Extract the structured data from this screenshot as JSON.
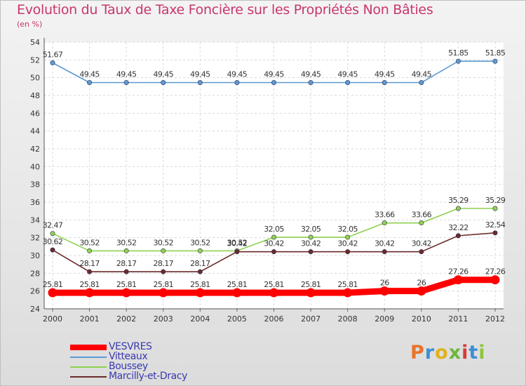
{
  "header": {
    "title": "Evolution du Taux de Taxe Foncière sur les Propriétés Non Bâties",
    "subtitle": "(en %)"
  },
  "logo": {
    "text": "Proxiti",
    "colors": [
      "#e8742a",
      "#3c8fd6",
      "#e0b31c",
      "#6cb83a",
      "#d83a3a",
      "#3c8fd6",
      "#8fc540"
    ]
  },
  "chart_data": {
    "type": "line",
    "x": [
      "2000",
      "2001",
      "2002",
      "2003",
      "2004",
      "2005",
      "2006",
      "2007",
      "2008",
      "2009",
      "2010",
      "2011",
      "2012"
    ],
    "ylim": [
      24,
      54
    ],
    "yticks": [
      24,
      26,
      28,
      30,
      32,
      34,
      36,
      38,
      40,
      42,
      44,
      46,
      48,
      50,
      52,
      54
    ],
    "grid": true,
    "legend_position": "bottom-left",
    "series": [
      {
        "name": "VESVRES",
        "color": "#ff0000",
        "values": [
          25.81,
          25.81,
          25.81,
          25.81,
          25.81,
          25.81,
          25.81,
          25.81,
          25.81,
          26,
          26,
          27.26,
          27.26
        ],
        "labels": [
          "25.81",
          "25.81",
          "25.81",
          "25.81",
          "25.81",
          "25.81",
          "25.81",
          "25.81",
          "25.81",
          "26",
          "26",
          "27.26",
          "27.26"
        ]
      },
      {
        "name": "Vitteaux",
        "color": "#5b9bd5",
        "values": [
          51.67,
          49.45,
          49.45,
          49.45,
          49.45,
          49.45,
          49.45,
          49.45,
          49.45,
          49.45,
          49.45,
          51.85,
          51.85
        ],
        "labels": [
          "51.67",
          "49.45",
          "49.45",
          "49.45",
          "49.45",
          "49.45",
          "49.45",
          "49.45",
          "49.45",
          "49.45",
          "49.45",
          "51.85",
          "51.85"
        ]
      },
      {
        "name": "Boussey",
        "color": "#8fd14f",
        "values": [
          32.47,
          30.52,
          30.52,
          30.52,
          30.52,
          30.52,
          32.05,
          32.05,
          32.05,
          33.66,
          33.66,
          35.29,
          35.29
        ],
        "labels": [
          "32.47",
          "30.52",
          "30.52",
          "30.52",
          "30.52",
          "30.52",
          "32.05",
          "32.05",
          "32.05",
          "33.66",
          "33.66",
          "35.29",
          "35.29"
        ]
      },
      {
        "name": "Marcilly-et-Dracy",
        "color": "#6b2a2a",
        "values": [
          30.62,
          28.17,
          28.17,
          28.17,
          28.17,
          30.42,
          30.42,
          30.42,
          30.42,
          30.42,
          30.42,
          32.22,
          32.54
        ],
        "labels": [
          "30.62",
          "28.17",
          "28.17",
          "28.17",
          "28.17",
          "30.42",
          "30.42",
          "30.42",
          "30.42",
          "30.42",
          "30.42",
          "32.22",
          "32.54"
        ]
      }
    ]
  }
}
